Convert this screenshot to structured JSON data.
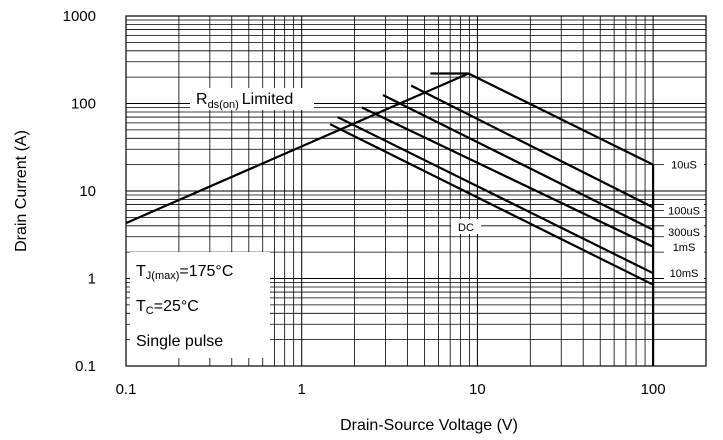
{
  "chart_data": {
    "type": "line",
    "xscale": "log",
    "yscale": "log",
    "xlim": [
      0.1,
      200
    ],
    "ylim": [
      0.1,
      1000
    ],
    "grid": true,
    "xlabel": "Drain-Source Voltage (V)",
    "ylabel": "Drain Current (A)",
    "x_ticks": [
      "0.1",
      "1",
      "10",
      "100"
    ],
    "y_ticks": [
      "0.1",
      "1",
      "10",
      "100",
      "1000"
    ],
    "limit_line": {
      "label": "Limited",
      "label_prefix": "R",
      "label_sub": "ds(on)",
      "points": [
        [
          0.1,
          4.3
        ],
        [
          8.9,
          220
        ]
      ]
    },
    "series": [
      {
        "name": "10uS",
        "points": [
          [
            5.4,
            220
          ],
          [
            8.9,
            220
          ],
          [
            100,
            20
          ]
        ]
      },
      {
        "name": "100uS",
        "points": [
          [
            4.2,
            160
          ],
          [
            100,
            6.5
          ]
        ]
      },
      {
        "name": "300uS",
        "points": [
          [
            2.9,
            125
          ],
          [
            100,
            3.6
          ]
        ]
      },
      {
        "name": "1mS",
        "points": [
          [
            2.2,
            90
          ],
          [
            100,
            2.3
          ]
        ]
      },
      {
        "name": "10mS",
        "points": [
          [
            1.6,
            70
          ],
          [
            100,
            1.15
          ]
        ]
      },
      {
        "name": "DC",
        "points": [
          [
            1.45,
            58
          ],
          [
            100,
            0.85
          ]
        ]
      }
    ],
    "vertical_limit": {
      "x": 100,
      "y_from": 0.1,
      "y_to": 20
    },
    "annotations": {
      "tj": {
        "prefix": "T",
        "sub": "J(max)",
        "suffix": "=175°C"
      },
      "tc": {
        "prefix": "T",
        "sub": "C",
        "suffix": "=25°C"
      },
      "pulse": "Single pulse"
    }
  }
}
